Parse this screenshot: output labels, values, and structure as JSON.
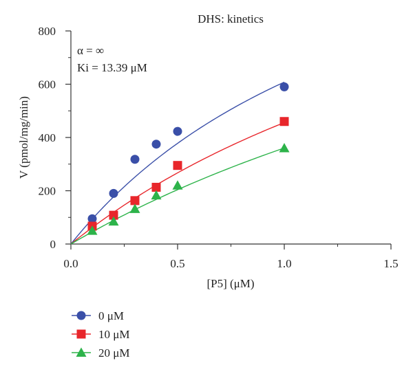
{
  "chart_data": {
    "type": "scatter",
    "title": "DHS: kinetics",
    "xlabel": "[P5] (μM)",
    "ylabel": "V (pmol/mg/min)",
    "xlim": [
      0,
      1.5
    ],
    "ylim": [
      0,
      800
    ],
    "xticks": [
      0,
      0.5,
      1.0,
      1.5
    ],
    "xtick_labels": [
      "0.0",
      "0.5",
      "1.0",
      "1.5"
    ],
    "xminor": [
      0.25,
      0.75,
      1.25
    ],
    "yticks": [
      0,
      200,
      400,
      600,
      800
    ],
    "ytick_labels": [
      "0",
      "200",
      "400",
      "600",
      "800"
    ],
    "yminor": [
      100,
      300,
      500,
      700
    ],
    "grid": false,
    "legend_position": "bottom-left",
    "annotations": [
      "α = ∞",
      "Ki = 13.39 μM"
    ],
    "series": [
      {
        "name": "0 μM",
        "marker": "circle",
        "color": "#3a4fa8",
        "x": [
          0.1,
          0.2,
          0.3,
          0.4,
          0.5,
          1.0
        ],
        "y": [
          95,
          190,
          318,
          375,
          423,
          590
        ],
        "fit": {
          "vmax": 1550,
          "km": 1.55
        }
      },
      {
        "name": "10 μM",
        "marker": "square",
        "color": "#e8262b",
        "x": [
          0.1,
          0.2,
          0.3,
          0.4,
          0.5,
          1.0
        ],
        "y": [
          67,
          108,
          163,
          213,
          295,
          460
        ],
        "fit": {
          "vmax": 1550,
          "km": 2.4
        }
      },
      {
        "name": "20 μM",
        "marker": "triangle",
        "color": "#2db34a",
        "x": [
          0.1,
          0.2,
          0.3,
          0.4,
          0.5,
          1.0
        ],
        "y": [
          50,
          85,
          132,
          183,
          220,
          360
        ],
        "fit": {
          "vmax": 1550,
          "km": 3.3
        }
      }
    ]
  }
}
